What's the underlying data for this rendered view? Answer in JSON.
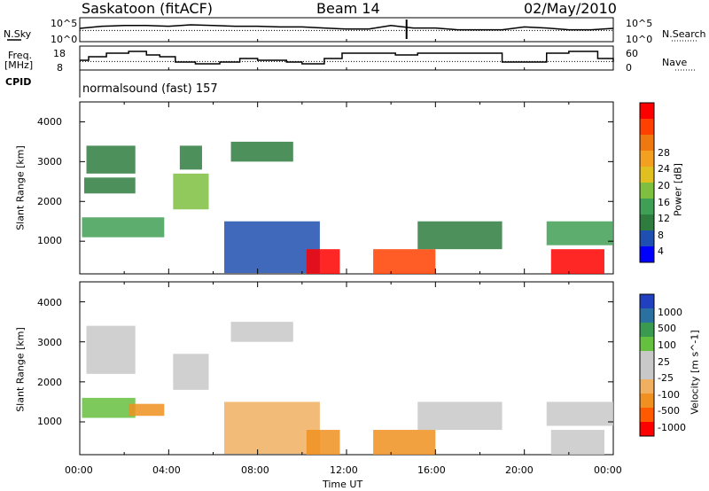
{
  "header": {
    "station": "Saskatoon (fitACF)",
    "beam": "Beam 14",
    "date": "02/May/2010"
  },
  "strips": {
    "nsky_label": "N.Sky",
    "nsky_ticks": [
      "10^5",
      "10^0"
    ],
    "nsearch_label": "N.Search",
    "freq_label": "Freq.",
    "freq_unit": "[MHz]",
    "freq_ticks": [
      "18",
      "8"
    ],
    "nave_label": "Nave",
    "nave_ticks": [
      "60",
      "0"
    ],
    "cpid_label": "CPID",
    "cpid_text": "normalsound (fast) 157"
  },
  "colors": {
    "power": [
      "#0000ff",
      "#1f4fb0",
      "#2e7d3e",
      "#3f9f55",
      "#7fbf3f",
      "#e0c020",
      "#f3a020",
      "#f07810",
      "#ff4000",
      "#ff0000"
    ],
    "velocity": [
      "#ff0000",
      "#ff5a00",
      "#f09020",
      "#f0b060",
      "#c8c8c8",
      "#c8c8c8",
      "#66c040",
      "#3a9a50",
      "#2a70a0",
      "#2040c0"
    ]
  },
  "chart_data": [
    {
      "type": "line",
      "name": "strip-nsky",
      "ylabels": [
        "10^5",
        "10^0"
      ],
      "x": [
        0,
        1,
        2,
        3,
        4,
        5,
        6,
        7,
        8,
        9,
        10,
        11,
        12,
        13,
        14,
        15,
        16,
        17,
        18,
        19,
        20,
        21,
        22,
        23,
        24
      ],
      "series": [
        {
          "name": "N.Sky",
          "values": [
            3.0,
            3.6,
            3.8,
            3.8,
            3.6,
            4.0,
            3.8,
            3.6,
            3.6,
            3.4,
            3.4,
            3.1,
            2.8,
            2.8,
            3.8,
            3.1,
            3.1,
            2.6,
            2.6,
            2.6,
            3.4,
            3.1,
            2.6,
            2.6,
            3.0
          ]
        },
        {
          "name": "N.Search",
          "values": [
            2.4,
            2.4,
            2.4,
            2.4,
            2.4,
            2.4,
            2.4,
            2.4,
            2.4,
            2.4,
            2.4,
            2.4,
            2.4,
            2.4,
            2.4,
            2.4,
            2.4,
            2.4,
            2.4,
            2.4,
            2.4,
            2.4,
            2.4,
            2.4,
            2.4
          ]
        }
      ]
    },
    {
      "type": "line",
      "name": "strip-freq",
      "ylabels_left": [
        "18",
        "8"
      ],
      "ylabels_right": [
        "60",
        "0"
      ],
      "x": [
        0,
        0.4,
        1.2,
        2.2,
        3.0,
        3.6,
        4.3,
        5.2,
        6.3,
        7.2,
        8.0,
        9.3,
        10.0,
        11.0,
        11.8,
        13.0,
        14.2,
        15.2,
        16.6,
        19.0,
        20.8,
        21.0,
        22.0,
        23.3,
        24
      ],
      "series": [
        {
          "name": "Freq",
          "values": [
            12,
            14,
            16,
            17,
            15,
            14,
            11,
            10,
            11,
            13,
            12,
            11,
            10,
            13,
            16,
            16,
            15,
            16,
            16,
            11,
            11,
            16,
            17,
            13,
            11
          ]
        },
        {
          "name": "Nave",
          "values": [
            20,
            20,
            20,
            20,
            20,
            20,
            20,
            20,
            20,
            20,
            20,
            20,
            20,
            20,
            20,
            20,
            20,
            20,
            20,
            20,
            20,
            20,
            20,
            20,
            20
          ]
        }
      ]
    },
    {
      "type": "heatmap",
      "name": "power",
      "xlabel": "",
      "ylabel": "Slant Range [km]",
      "xlim": [
        0,
        24
      ],
      "ylim": [
        180,
        4500
      ],
      "yticks": [
        1000,
        2000,
        3000,
        4000
      ],
      "colorbar": {
        "label": "Power [dB]",
        "ticks": [
          "28",
          "24",
          "20",
          "16",
          "12",
          "8",
          "4"
        ],
        "range": [
          0,
          30
        ]
      },
      "regions": [
        {
          "t0": 0.1,
          "t1": 3.8,
          "r0": 1100,
          "r1": 1600,
          "v": 10
        },
        {
          "t0": 0.2,
          "t1": 2.5,
          "r0": 2200,
          "r1": 2600,
          "v": 8
        },
        {
          "t0": 0.3,
          "t1": 2.5,
          "r0": 2700,
          "r1": 3400,
          "v": 6
        },
        {
          "t0": 4.2,
          "t1": 5.8,
          "r0": 1800,
          "r1": 2700,
          "v": 12
        },
        {
          "t0": 4.5,
          "t1": 5.5,
          "r0": 2800,
          "r1": 3400,
          "v": 6
        },
        {
          "t0": 6.8,
          "t1": 9.6,
          "r0": 3000,
          "r1": 3500,
          "v": 7
        },
        {
          "t0": 6.5,
          "t1": 10.8,
          "r0": 200,
          "r1": 1500,
          "v": 5
        },
        {
          "t0": 10.2,
          "t1": 11.7,
          "r0": 180,
          "r1": 800,
          "v": 27
        },
        {
          "t0": 13.2,
          "t1": 16.0,
          "r0": 180,
          "r1": 800,
          "v": 26
        },
        {
          "t0": 15.2,
          "t1": 19.0,
          "r0": 800,
          "r1": 1500,
          "v": 6
        },
        {
          "t0": 21.2,
          "t1": 23.6,
          "r0": 180,
          "r1": 800,
          "v": 28
        },
        {
          "t0": 21.0,
          "t1": 24.0,
          "r0": 900,
          "r1": 1500,
          "v": 10
        }
      ]
    },
    {
      "type": "heatmap",
      "name": "velocity",
      "xlabel": "Time UT",
      "ylabel": "Slant Range [km]",
      "xlim": [
        0,
        24
      ],
      "ylim": [
        180,
        4500
      ],
      "xticks": [
        "00:00",
        "04:00",
        "08:00",
        "12:00",
        "16:00",
        "20:00",
        "00:00"
      ],
      "yticks": [
        1000,
        2000,
        3000,
        4000
      ],
      "colorbar": {
        "label": "Velocity [m s^-1]",
        "ticks": [
          "1000",
          "500",
          "100",
          "25",
          "-25",
          "-100",
          "-500",
          "-1000"
        ]
      },
      "regions": [
        {
          "t0": 0.1,
          "t1": 2.5,
          "r0": 1100,
          "r1": 1600,
          "v": 150
        },
        {
          "t0": 2.2,
          "t1": 3.8,
          "r0": 1150,
          "r1": 1450,
          "v": -150
        },
        {
          "t0": 0.3,
          "t1": 2.5,
          "r0": 2200,
          "r1": 3400,
          "v": 0
        },
        {
          "t0": 4.2,
          "t1": 5.8,
          "r0": 1800,
          "r1": 2700,
          "v": 0
        },
        {
          "t0": 6.8,
          "t1": 9.6,
          "r0": 3000,
          "r1": 3500,
          "v": 0
        },
        {
          "t0": 6.5,
          "t1": 10.8,
          "r0": 200,
          "r1": 1500,
          "v": -60
        },
        {
          "t0": 10.2,
          "t1": 11.7,
          "r0": 180,
          "r1": 800,
          "v": -400
        },
        {
          "t0": 13.2,
          "t1": 16.0,
          "r0": 180,
          "r1": 800,
          "v": -200
        },
        {
          "t0": 15.2,
          "t1": 19.0,
          "r0": 800,
          "r1": 1500,
          "v": 0
        },
        {
          "t0": 21.2,
          "t1": 23.6,
          "r0": 180,
          "r1": 800,
          "v": -10
        },
        {
          "t0": 21.0,
          "t1": 24.0,
          "r0": 900,
          "r1": 1500,
          "v": 0
        }
      ]
    }
  ]
}
